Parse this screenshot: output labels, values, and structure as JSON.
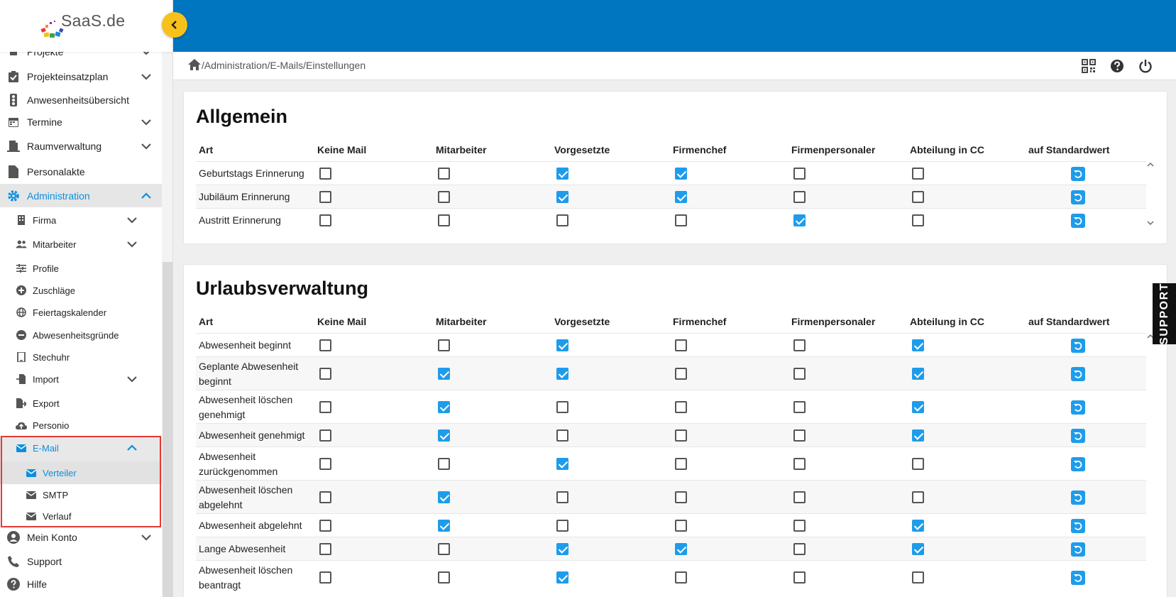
{
  "app": {
    "logo_text": "SaaS.de"
  },
  "sidebar": {
    "items": [
      {
        "label": "Projekte"
      },
      {
        "label": "Projekteinsatzplan"
      },
      {
        "label": "Anwesenheitsübersicht"
      },
      {
        "label": "Termine"
      },
      {
        "label": "Raumverwaltung"
      },
      {
        "label": "Personalakte"
      },
      {
        "label": "Administration"
      }
    ],
    "admin_sub": [
      {
        "label": "Firma"
      },
      {
        "label": "Mitarbeiter"
      },
      {
        "label": "Profile"
      },
      {
        "label": "Zuschläge"
      },
      {
        "label": "Feiertagskalender"
      },
      {
        "label": "Abwesenheitsgründe"
      },
      {
        "label": "Stechuhr"
      },
      {
        "label": "Import"
      },
      {
        "label": "Export"
      },
      {
        "label": "Personio"
      },
      {
        "label": "E-Mail"
      }
    ],
    "email_sub": [
      {
        "label": "Verteiler"
      },
      {
        "label": "SMTP"
      },
      {
        "label": "Verlauf"
      }
    ],
    "bottom": [
      {
        "label": "Mein Konto"
      },
      {
        "label": "Support"
      },
      {
        "label": "Hilfe"
      }
    ]
  },
  "breadcrumb": "/Administration/E-Mails/Einstellungen",
  "support_label": "SUPPORT",
  "columns": [
    "Art",
    "Keine Mail",
    "Mitarbeiter",
    "Vorgesetzte",
    "Firmenchef",
    "Firmenpersonaler",
    "Abteilung in CC",
    "auf Standardwert"
  ],
  "sections": [
    {
      "title": "Allgemein",
      "rows": [
        {
          "label": "Geburtstags Erinnerung",
          "checks": [
            false,
            false,
            true,
            true,
            false,
            false
          ]
        },
        {
          "label": "Jubiläum Erinnerung",
          "checks": [
            false,
            false,
            true,
            true,
            false,
            false
          ]
        },
        {
          "label": "Austritt Erinnerung",
          "checks": [
            false,
            false,
            false,
            false,
            true,
            false
          ]
        }
      ]
    },
    {
      "title": "Urlaubsverwaltung",
      "rows": [
        {
          "label": "Abwesenheit beginnt",
          "checks": [
            false,
            false,
            true,
            false,
            false,
            true
          ]
        },
        {
          "label": "Geplante Abwesenheit beginnt",
          "checks": [
            false,
            true,
            true,
            false,
            false,
            true
          ]
        },
        {
          "label": "Abwesenheit löschen genehmigt",
          "checks": [
            false,
            true,
            false,
            false,
            false,
            true
          ]
        },
        {
          "label": "Abwesenheit genehmigt",
          "checks": [
            false,
            true,
            false,
            false,
            false,
            true
          ]
        },
        {
          "label": "Abwesenheit zurückgenommen",
          "checks": [
            false,
            false,
            true,
            false,
            false,
            false
          ]
        },
        {
          "label": "Abwesenheit löschen abgelehnt",
          "checks": [
            false,
            true,
            false,
            false,
            false,
            false
          ]
        },
        {
          "label": "Abwesenheit abgelehnt",
          "checks": [
            false,
            true,
            false,
            false,
            false,
            true
          ]
        },
        {
          "label": "Lange Abwesenheit",
          "checks": [
            false,
            false,
            true,
            true,
            false,
            true
          ]
        },
        {
          "label": "Abwesenheit löschen beantragt",
          "checks": [
            false,
            false,
            true,
            false,
            false,
            false
          ]
        }
      ]
    }
  ]
}
